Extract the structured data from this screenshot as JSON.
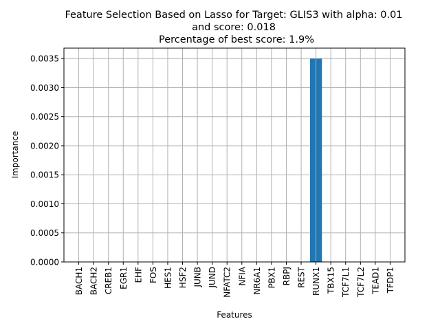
{
  "chart_data": {
    "type": "bar",
    "title_lines": [
      "Feature Selection Based on Lasso for Target: GLIS3 with alpha: 0.01",
      "and score: 0.018",
      "Percentage of best score: 1.9%"
    ],
    "xlabel": "Features",
    "ylabel": "Importance",
    "categories": [
      "BACH1",
      "BACH2",
      "CREB1",
      "EGR1",
      "EHF",
      "FOS",
      "HES1",
      "HSF2",
      "JUNB",
      "JUND",
      "NFATC2",
      "NFIA",
      "NR6A1",
      "PBX1",
      "RBPJ",
      "REST",
      "RUNX1",
      "TBX15",
      "TCF7L1",
      "TCF7L2",
      "TEAD1",
      "TFDP1"
    ],
    "values": [
      0,
      0,
      0,
      0,
      0,
      0,
      0,
      0,
      0,
      0,
      0,
      0,
      0,
      0,
      0,
      0,
      0.0035,
      0,
      0,
      0,
      0,
      0
    ],
    "ylim": [
      0,
      0.00368
    ],
    "yticks": [
      "0.0000",
      "0.0005",
      "0.0010",
      "0.0015",
      "0.0020",
      "0.0025",
      "0.0030",
      "0.0035"
    ],
    "grid": true,
    "bar_color": "#1f77b4",
    "grid_color": "#b0b0b0"
  }
}
